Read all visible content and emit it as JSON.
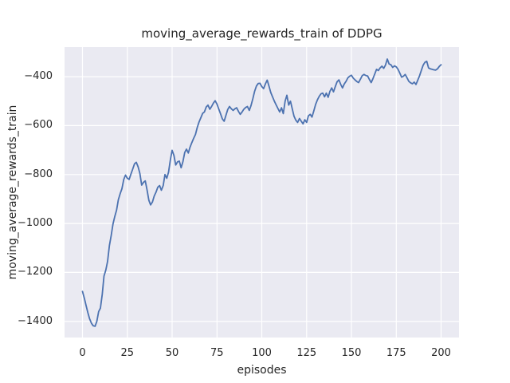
{
  "figure": {
    "background": "#ffffff",
    "plot_background": "#eaeaf2",
    "grid_color": "#ffffff",
    "text_color": "#262626"
  },
  "chart_data": {
    "type": "line",
    "title": "moving_average_rewards_train of DDPG",
    "xlabel": "episodes",
    "ylabel": "moving_average_rewards_train",
    "legend": "none",
    "grid": "on",
    "x_ticks": [
      0,
      25,
      50,
      75,
      100,
      125,
      150,
      175,
      200
    ],
    "x_tick_labels": [
      "0",
      "25",
      "50",
      "75",
      "100",
      "125",
      "150",
      "175",
      "200"
    ],
    "y_ticks": [
      -400,
      -600,
      -800,
      -1000,
      -1200,
      -1400
    ],
    "y_tick_labels": [
      "−400",
      "−600",
      "−800",
      "−1000",
      "−1200",
      "−1400"
    ],
    "xlim": [
      -10,
      210
    ],
    "ylim": [
      -1466,
      -279
    ],
    "series": [
      {
        "color": "#4c72b0",
        "line_width": 1.8,
        "x_start": 0,
        "x_step": 1,
        "values": [
          -1278,
          -1305,
          -1335,
          -1365,
          -1390,
          -1408,
          -1418,
          -1420,
          -1400,
          -1360,
          -1346,
          -1290,
          -1215,
          -1190,
          -1155,
          -1090,
          -1050,
          -1002,
          -972,
          -945,
          -903,
          -878,
          -858,
          -820,
          -802,
          -815,
          -820,
          -798,
          -778,
          -756,
          -750,
          -768,
          -795,
          -843,
          -832,
          -826,
          -862,
          -905,
          -924,
          -912,
          -888,
          -872,
          -852,
          -845,
          -864,
          -845,
          -800,
          -815,
          -790,
          -740,
          -701,
          -722,
          -761,
          -748,
          -745,
          -772,
          -748,
          -710,
          -696,
          -712,
          -688,
          -669,
          -652,
          -636,
          -608,
          -585,
          -568,
          -550,
          -544,
          -524,
          -516,
          -533,
          -522,
          -508,
          -498,
          -512,
          -532,
          -552,
          -572,
          -582,
          -558,
          -534,
          -522,
          -531,
          -538,
          -531,
          -527,
          -542,
          -554,
          -544,
          -533,
          -526,
          -522,
          -538,
          -518,
          -490,
          -460,
          -438,
          -428,
          -427,
          -440,
          -449,
          -430,
          -414,
          -438,
          -465,
          -482,
          -500,
          -515,
          -530,
          -544,
          -527,
          -551,
          -500,
          -476,
          -516,
          -500,
          -532,
          -562,
          -578,
          -587,
          -571,
          -582,
          -593,
          -576,
          -587,
          -560,
          -554,
          -565,
          -540,
          -514,
          -495,
          -481,
          -470,
          -467,
          -482,
          -467,
          -484,
          -460,
          -446,
          -462,
          -440,
          -421,
          -413,
          -431,
          -446,
          -430,
          -419,
          -405,
          -398,
          -394,
          -406,
          -413,
          -420,
          -424,
          -410,
          -396,
          -391,
          -395,
          -397,
          -411,
          -424,
          -408,
          -389,
          -370,
          -375,
          -364,
          -357,
          -366,
          -352,
          -328,
          -348,
          -351,
          -362,
          -356,
          -360,
          -370,
          -386,
          -402,
          -398,
          -391,
          -405,
          -419,
          -425,
          -429,
          -422,
          -432,
          -414,
          -396,
          -374,
          -353,
          -341,
          -337,
          -364,
          -368,
          -370,
          -372,
          -373,
          -368,
          -358,
          -351
        ]
      }
    ]
  }
}
